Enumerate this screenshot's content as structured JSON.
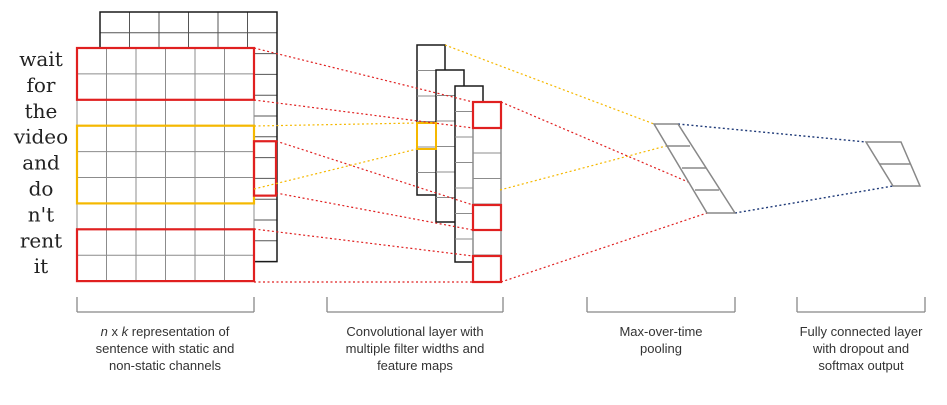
{
  "words": [
    "wait",
    "for",
    "the",
    "video",
    "and",
    "do",
    "n't",
    "rent",
    "it"
  ],
  "captions": [
    {
      "lines": [
        [
          {
            "text": "n",
            "italic": true
          },
          {
            "text": " x ",
            "italic": false
          },
          {
            "text": "k",
            "italic": true
          },
          {
            "text": " representation of",
            "italic": false
          }
        ],
        [
          {
            "text": "sentence with static and",
            "italic": false
          }
        ],
        [
          {
            "text": "non-static channels",
            "italic": false
          }
        ]
      ]
    },
    {
      "lines": [
        [
          {
            "text": "Convolutional layer with",
            "italic": false
          }
        ],
        [
          {
            "text": "multiple filter widths and",
            "italic": false
          }
        ],
        [
          {
            "text": "feature maps",
            "italic": false
          }
        ]
      ]
    },
    {
      "lines": [
        [
          {
            "text": "Max-over-time",
            "italic": false
          }
        ],
        [
          {
            "text": "pooling",
            "italic": false
          }
        ]
      ]
    },
    {
      "lines": [
        [
          {
            "text": "Fully connected layer",
            "italic": false
          }
        ],
        [
          {
            "text": "with dropout and",
            "italic": false
          }
        ],
        [
          {
            "text": "softmax output",
            "italic": false
          }
        ]
      ]
    }
  ],
  "colors": {
    "grid": "#8c8c8c",
    "black": "#1a1a1a",
    "red": "#e02020",
    "yellow": "#f5b800",
    "blue": "#1f3a78",
    "gray": "#888888"
  }
}
